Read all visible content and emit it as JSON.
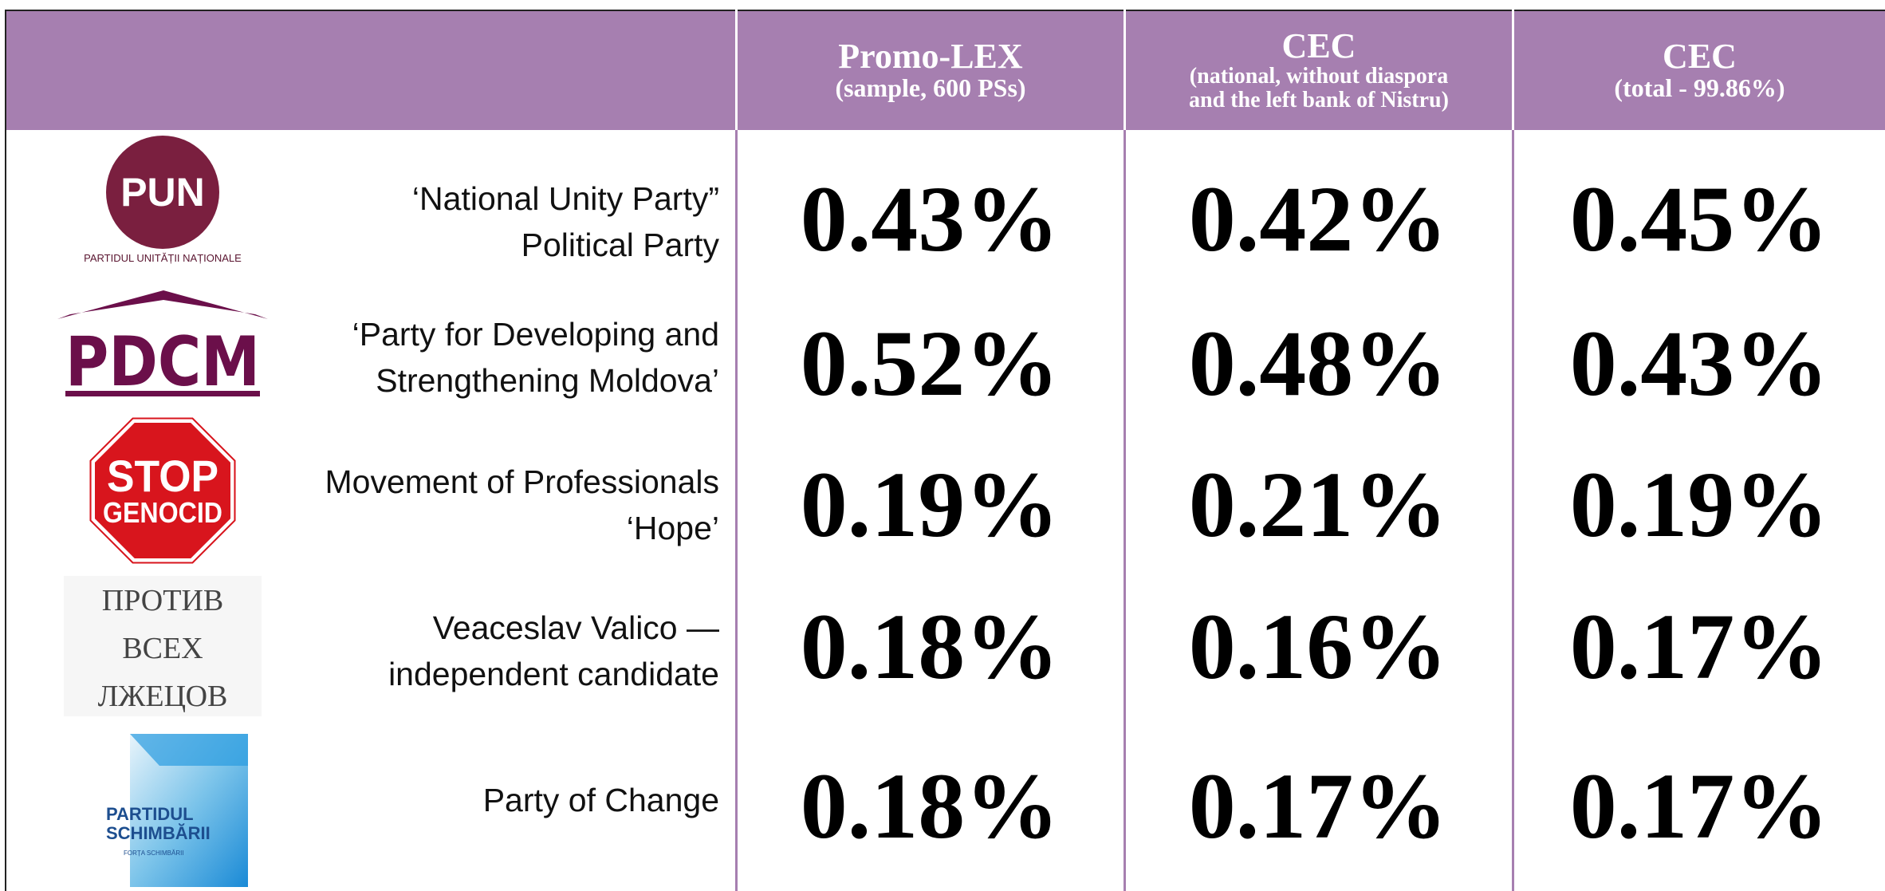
{
  "header": {
    "columns": [
      {
        "title": "Promo-LEX",
        "subtitle": [
          "(sample, 600 PSs)"
        ]
      },
      {
        "title": "CEC",
        "subtitle": [
          "(national, without diaspora",
          "and the left bank of Nistru)"
        ]
      },
      {
        "title": "CEC",
        "subtitle": [
          "(total - 99.86%)"
        ]
      }
    ]
  },
  "rows": [
    {
      "logo": [
        "PUN",
        "PARTIDUL UNITĂȚII NAȚIONALE"
      ],
      "name": [
        "‘National Unity Party”",
        "Political Party"
      ],
      "values": [
        "0.43%",
        "0.42%",
        "0.45%"
      ]
    },
    {
      "logo": [
        "PDCM"
      ],
      "name": [
        "‘Party for Developing and",
        "Strengthening Moldova’"
      ],
      "values": [
        "0.52%",
        "0.48%",
        "0.43%"
      ]
    },
    {
      "logo": [
        "STOP",
        "GENOCID"
      ],
      "name": [
        "Movement of Professionals",
        "‘Hope’"
      ],
      "values": [
        "0.19%",
        "0.21%",
        "0.19%"
      ]
    },
    {
      "logo": [
        "ПРОТИВ",
        "ВСЕХ",
        "ЛЖЕЦОВ"
      ],
      "name": [
        "Veaceslav Valico —",
        "independent candidate"
      ],
      "values": [
        "0.18%",
        "0.16%",
        "0.17%"
      ]
    },
    {
      "logo": [
        "PARTIDUL",
        "SCHIMBĂRII",
        "FORȚA SCHIMBĂRII"
      ],
      "name": [
        "Party of Change"
      ],
      "values": [
        "0.18%",
        "0.17%",
        "0.17%"
      ]
    }
  ]
}
